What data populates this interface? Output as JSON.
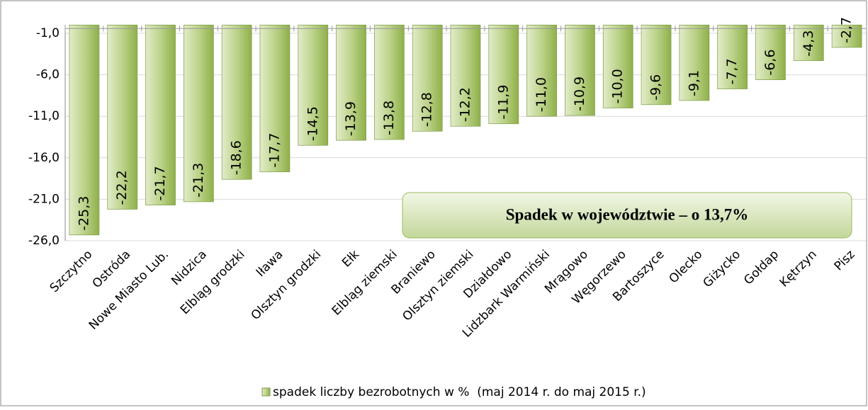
{
  "chart_data": {
    "type": "bar",
    "categories": [
      "Szczytno",
      "Ostróda",
      "Nowe Miasto Lub.",
      "Nidzica",
      "Elbląg grodzki",
      "Iława",
      "Olsztyn grodzki",
      "Ełk",
      "Elbląg ziemski",
      "Braniewo",
      "Olsztyn ziemski",
      "Działdowo",
      "Lidzbark Warmiński",
      "Mrągowo",
      "Węgorzewo",
      "Bartoszyce",
      "Olecko",
      "Giżycko",
      "Gołdap",
      "Kętrzyn",
      "Pisz"
    ],
    "series": [
      {
        "name": "spadek liczby bezrobotnych w %  (maj 2014 r. do maj 2015 r.)",
        "color": "#9bbb59",
        "values": [
          -25.3,
          -22.2,
          -21.7,
          -21.3,
          -18.6,
          -17.7,
          -14.5,
          -13.9,
          -13.8,
          -12.8,
          -12.2,
          -11.9,
          -11.0,
          -10.9,
          -10.0,
          -9.6,
          -9.1,
          -7.7,
          -6.6,
          -4.3,
          -2.7
        ],
        "value_labels": [
          "-25,3",
          "-22,2",
          "-21,7",
          "-21,3",
          "-18,6",
          "-17,7",
          "-14,5",
          "-13,9",
          "-13,8",
          "-12,8",
          "-12,2",
          "-11,9",
          "-11,0",
          "-10,9",
          "-10,0",
          "-9,6",
          "-9,1",
          "-7,7",
          "-6,6",
          "-4,3",
          "-2,7"
        ]
      }
    ],
    "ylim": [
      0,
      -26
    ],
    "yticks": [
      {
        "value": -1,
        "label": "-1,0"
      },
      {
        "value": -6,
        "label": "-6,0"
      },
      {
        "value": -11,
        "label": "-11,0"
      },
      {
        "value": -16,
        "label": "-16,0"
      },
      {
        "value": -21,
        "label": "-21,0"
      },
      {
        "value": -26,
        "label": "-26,0"
      }
    ],
    "grid": true,
    "annotation": "Spadek w województwie – o 13,7%",
    "legend": "bottom"
  }
}
